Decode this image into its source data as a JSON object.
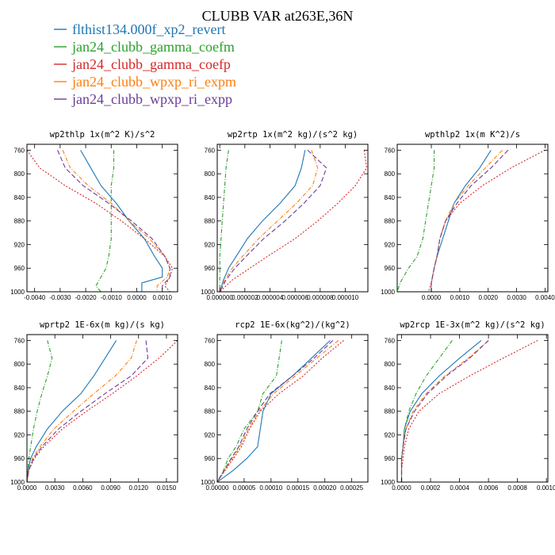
{
  "title": "CLUBB VAR at263E,36N",
  "legend": [
    {
      "name": "flthist134.000f_xp2_revert",
      "color": "#1f77b4",
      "dash": ""
    },
    {
      "name": "jan24_clubb_gamma_coefm",
      "color": "#2ca02c",
      "dash": "5,2,1,2"
    },
    {
      "name": "jan24_clubb_gamma_coefp",
      "color": "#d62728",
      "dash": "2,2"
    },
    {
      "name": "jan24_clubb_wpxp_ri_expm",
      "color": "#ff7f0e",
      "dash": "5,2,1,2"
    },
    {
      "name": "jan24_clubb_wpxp_ri_expp",
      "color": "#6a3d9a",
      "dash": "6,3"
    }
  ],
  "chart_data": [
    {
      "type": "line",
      "title": "wp2thlp  1x(m^2 K)/s^2",
      "xlim": [
        -0.0043,
        0.0016
      ],
      "ylim": [
        1000,
        750
      ],
      "xticks": [
        -0.004,
        -0.003,
        -0.002,
        -0.001,
        0.0,
        0.001
      ],
      "xtick_labels": [
        "-0.0040",
        "-0.0030",
        "-0.0020",
        "-0.0010",
        "0.0000",
        "0.0010"
      ],
      "yticks": [
        760,
        800,
        840,
        880,
        920,
        960,
        1000
      ],
      "series": [
        {
          "x": [
            -0.0022,
            -0.0018,
            -0.0014,
            -0.0008,
            -0.0003,
            0.0003,
            0.0007,
            0.001,
            0.001,
            0.0002,
            0.0002
          ],
          "y": [
            760,
            790,
            820,
            850,
            880,
            910,
            940,
            960,
            975,
            985,
            1000
          ]
        },
        {
          "x": [
            -0.0009,
            -0.0009,
            -0.001,
            -0.001,
            -0.001,
            -0.001,
            -0.0011,
            -0.0012,
            -0.0014,
            -0.0016,
            -0.0014
          ],
          "y": [
            760,
            790,
            820,
            850,
            880,
            910,
            940,
            960,
            975,
            990,
            1000
          ]
        },
        {
          "x": [
            -0.0043,
            -0.0038,
            -0.0028,
            -0.0016,
            -0.0006,
            0.0003,
            0.0011,
            0.0014,
            0.0013,
            0.0011,
            0.0013
          ],
          "y": [
            760,
            790,
            820,
            850,
            880,
            910,
            940,
            960,
            975,
            990,
            1000
          ]
        },
        {
          "x": [
            -0.0029,
            -0.0026,
            -0.0019,
            -0.001,
            -0.0003,
            0.0005,
            0.0011,
            0.0013,
            0.0012,
            0.0008,
            0.0008
          ],
          "y": [
            760,
            790,
            820,
            850,
            880,
            910,
            940,
            960,
            975,
            990,
            1000
          ]
        },
        {
          "x": [
            -0.0031,
            -0.0028,
            -0.0021,
            -0.0011,
            -0.0002,
            0.0006,
            0.0011,
            0.0013,
            0.0013,
            0.001,
            0.001
          ],
          "y": [
            760,
            790,
            820,
            850,
            880,
            910,
            940,
            960,
            975,
            990,
            1000
          ]
        }
      ]
    },
    {
      "type": "line",
      "title": "wp2rtp  1x(m^2 kg)/(s^2 kg)",
      "xlim": [
        -2e-07,
        1.18e-05
      ],
      "ylim": [
        1000,
        750
      ],
      "xticks": [
        0.0,
        2e-06,
        4e-06,
        6e-06,
        8e-06,
        1e-05
      ],
      "xtick_labels": [
        "0.000000",
        "0.000002",
        "0.000004",
        "0.000006",
        "0.000008",
        "0.000010"
      ],
      "yticks": [
        760,
        800,
        840,
        880,
        920,
        960,
        1000
      ],
      "series": [
        {
          "x": [
            6.8e-06,
            6.5e-06,
            6e-06,
            4.8e-06,
            3.4e-06,
            2.2e-06,
            1.3e-06,
            7e-07,
            3e-07,
            0.0
          ],
          "y": [
            760,
            790,
            820,
            850,
            880,
            910,
            940,
            960,
            980,
            1000
          ]
        },
        {
          "x": [
            7e-07,
            5e-07,
            4e-07,
            3e-07,
            2e-07,
            1e-07,
            0.0,
            0.0,
            0.0,
            0.0
          ],
          "y": [
            760,
            790,
            820,
            850,
            880,
            910,
            940,
            960,
            980,
            1000
          ]
        },
        {
          "x": [
            1.15e-05,
            1.17e-05,
            1.08e-05,
            9.4e-06,
            7.8e-06,
            6e-06,
            3.8e-06,
            2.4e-06,
            1e-06,
            0.0
          ],
          "y": [
            760,
            790,
            820,
            850,
            880,
            910,
            940,
            960,
            980,
            1000
          ]
        },
        {
          "x": [
            7.3e-06,
            7.8e-06,
            7.4e-06,
            6.1e-06,
            4.6e-06,
            3.1e-06,
            1.8e-06,
            1e-06,
            4e-07,
            0.0
          ],
          "y": [
            760,
            790,
            820,
            850,
            880,
            910,
            940,
            960,
            980,
            1000
          ]
        },
        {
          "x": [
            7e-06,
            8.5e-06,
            8e-06,
            6.7e-06,
            5.2e-06,
            3.5e-06,
            2.1e-06,
            1.2e-06,
            5e-07,
            0.0
          ],
          "y": [
            760,
            790,
            820,
            850,
            880,
            910,
            940,
            960,
            980,
            1000
          ]
        }
      ]
    },
    {
      "type": "line",
      "title": "wpthlp2  1x(m K^2)/s",
      "xlim": [
        -0.0012,
        0.0041
      ],
      "ylim": [
        1000,
        750
      ],
      "xticks": [
        0.0,
        0.001,
        0.002,
        0.003,
        0.004
      ],
      "xtick_labels": [
        "0.0000",
        "0.0010",
        "0.0020",
        "0.0030",
        "0.0040"
      ],
      "yticks": [
        760,
        800,
        840,
        880,
        920,
        960,
        1000
      ],
      "series": [
        {
          "x": [
            0.0021,
            0.0017,
            0.0012,
            0.0008,
            0.0006,
            0.0004,
            0.0002,
            0.0001,
            0.0,
            0.0
          ],
          "y": [
            760,
            790,
            820,
            850,
            880,
            910,
            940,
            960,
            985,
            1000
          ]
        },
        {
          "x": [
            0.0001,
            0.0001,
            0.0,
            -0.0001,
            -0.0002,
            -0.0003,
            -0.0005,
            -0.0008,
            -0.0011,
            -0.0012
          ],
          "y": [
            760,
            790,
            820,
            850,
            880,
            910,
            940,
            960,
            985,
            1000
          ]
        },
        {
          "x": [
            0.004,
            0.0028,
            0.0018,
            0.001,
            0.0005,
            0.0003,
            0.0002,
            0.0001,
            0.0,
            -0.0001
          ],
          "y": [
            760,
            790,
            820,
            850,
            880,
            910,
            940,
            960,
            985,
            1000
          ]
        },
        {
          "x": [
            0.0025,
            0.0019,
            0.0013,
            0.0008,
            0.0005,
            0.0003,
            0.0002,
            0.0001,
            0.0,
            0.0
          ],
          "y": [
            760,
            790,
            820,
            850,
            880,
            910,
            940,
            960,
            985,
            1000
          ]
        },
        {
          "x": [
            0.0027,
            0.0021,
            0.0014,
            0.0009,
            0.0005,
            0.0003,
            0.0002,
            0.0001,
            0.0,
            0.0
          ],
          "y": [
            760,
            790,
            820,
            850,
            880,
            910,
            940,
            960,
            985,
            1000
          ]
        }
      ]
    },
    {
      "type": "line",
      "title": "wprtp2  1E-6x(m kg)/(s kg)",
      "xlim": [
        0.0,
        0.0162
      ],
      "ylim": [
        1000,
        750
      ],
      "xticks": [
        0.0,
        0.003,
        0.006,
        0.009,
        0.012,
        0.015
      ],
      "xtick_labels": [
        "0.0000",
        "0.0030",
        "0.0060",
        "0.0090",
        "0.0120",
        "0.0150"
      ],
      "yticks": [
        760,
        800,
        840,
        880,
        920,
        960,
        1000
      ],
      "series": [
        {
          "x": [
            0.0096,
            0.0084,
            0.0072,
            0.0058,
            0.0038,
            0.0022,
            0.001,
            0.0004,
            0.0001,
            0.0
          ],
          "y": [
            760,
            790,
            820,
            850,
            880,
            910,
            940,
            960,
            980,
            1000
          ]
        },
        {
          "x": [
            0.0022,
            0.0027,
            0.0022,
            0.0016,
            0.0011,
            0.0007,
            0.0004,
            0.0002,
            0.0001,
            0.0
          ],
          "y": [
            760,
            790,
            820,
            850,
            880,
            910,
            940,
            960,
            980,
            1000
          ]
        },
        {
          "x": [
            0.0162,
            0.0142,
            0.0118,
            0.0092,
            0.0064,
            0.0038,
            0.0018,
            0.0008,
            0.0002,
            0.0
          ],
          "y": [
            760,
            790,
            820,
            850,
            880,
            910,
            940,
            960,
            980,
            1000
          ]
        },
        {
          "x": [
            0.0118,
            0.0112,
            0.0095,
            0.0072,
            0.005,
            0.0029,
            0.0014,
            0.0006,
            0.0002,
            0.0
          ],
          "y": [
            760,
            790,
            820,
            850,
            880,
            910,
            940,
            960,
            980,
            1000
          ]
        },
        {
          "x": [
            0.0128,
            0.013,
            0.0112,
            0.0084,
            0.0058,
            0.0034,
            0.0016,
            0.0007,
            0.0002,
            0.0
          ],
          "y": [
            760,
            790,
            820,
            850,
            880,
            910,
            940,
            960,
            980,
            1000
          ]
        }
      ]
    },
    {
      "type": "line",
      "title": "rcp2  1E-6x(kg^2)/(kg^2)",
      "xlim": [
        0.0,
        0.00028
      ],
      "ylim": [
        1000,
        750
      ],
      "xticks": [
        0.0,
        5e-05,
        0.0001,
        0.00015,
        0.0002,
        0.00025
      ],
      "xtick_labels": [
        "0.00000",
        "0.00005",
        "0.00010",
        "0.00015",
        "0.00020",
        "0.00025"
      ],
      "yticks": [
        760,
        800,
        840,
        880,
        920,
        960,
        1000
      ],
      "series": [
        {
          "x": [
            0.00021,
            0.000175,
            0.00014,
            0.0001,
            8.5e-05,
            8e-05,
            7.5e-05,
            5.5e-05,
            3e-05,
            0.0
          ],
          "y": [
            760,
            790,
            820,
            850,
            880,
            910,
            940,
            960,
            980,
            1000
          ]
        },
        {
          "x": [
            0.00012,
            0.000115,
            0.00011,
            8.5e-05,
            7.5e-05,
            5e-05,
            3.5e-05,
            2e-05,
            1.2e-05,
            0.0
          ],
          "y": [
            760,
            790,
            820,
            850,
            880,
            910,
            940,
            960,
            980,
            1000
          ]
        },
        {
          "x": [
            0.000235,
            0.000195,
            0.00016,
            0.000115,
            8e-05,
            6e-05,
            4.5e-05,
            3e-05,
            1.5e-05,
            0.0
          ],
          "y": [
            760,
            790,
            820,
            850,
            880,
            910,
            940,
            960,
            980,
            1000
          ]
        },
        {
          "x": [
            0.000225,
            0.000185,
            0.000145,
            0.000105,
            7.8e-05,
            5.8e-05,
            4.2e-05,
            2.8e-05,
            1.4e-05,
            0.0
          ],
          "y": [
            760,
            790,
            820,
            850,
            880,
            910,
            940,
            960,
            980,
            1000
          ]
        },
        {
          "x": [
            0.000215,
            0.00018,
            0.00014,
            9.8e-05,
            7.5e-05,
            5.5e-05,
            4e-05,
            2.6e-05,
            1.3e-05,
            0.0
          ],
          "y": [
            760,
            790,
            820,
            850,
            880,
            910,
            940,
            960,
            980,
            1000
          ]
        }
      ]
    },
    {
      "type": "line",
      "title": "wp2rcp  1E-3x(m^2 kg)/(s^2 kg)",
      "xlim": [
        -3e-05,
        0.00101
      ],
      "ylim": [
        1000,
        750
      ],
      "xticks": [
        0.0,
        0.0002,
        0.0004,
        0.0006,
        0.0008,
        0.001
      ],
      "xtick_labels": [
        "0.0000",
        "0.0002",
        "0.0004",
        "0.0006",
        "0.0008",
        "0.0010"
      ],
      "yticks": [
        760,
        800,
        840,
        880,
        920,
        960,
        1000
      ],
      "series": [
        {
          "x": [
            0.00055,
            0.0004,
            0.00026,
            0.00014,
            6e-05,
            2e-05,
            1e-05,
            0.0,
            0.0,
            0.0
          ],
          "y": [
            760,
            790,
            820,
            850,
            880,
            910,
            940,
            960,
            980,
            1000
          ]
        },
        {
          "x": [
            0.00035,
            0.00026,
            0.00017,
            0.0001,
            5e-05,
            2e-05,
            1e-05,
            0.0,
            0.0,
            0.0
          ],
          "y": [
            760,
            790,
            820,
            850,
            880,
            910,
            940,
            960,
            980,
            1000
          ]
        },
        {
          "x": [
            0.00094,
            0.0007,
            0.00047,
            0.00026,
            0.00012,
            5e-05,
            2e-05,
            1e-05,
            0.0,
            0.0
          ],
          "y": [
            760,
            790,
            820,
            850,
            880,
            910,
            940,
            960,
            980,
            1000
          ]
        },
        {
          "x": [
            0.0006,
            0.00046,
            0.0003,
            0.00017,
            8e-05,
            3e-05,
            1e-05,
            0.0,
            0.0,
            0.0
          ],
          "y": [
            760,
            790,
            820,
            850,
            880,
            910,
            940,
            960,
            980,
            1000
          ]
        },
        {
          "x": [
            0.0006,
            0.00047,
            0.00031,
            0.00018,
            9e-05,
            3e-05,
            1e-05,
            0.0,
            0.0,
            0.0
          ],
          "y": [
            760,
            790,
            820,
            850,
            880,
            910,
            940,
            960,
            980,
            1000
          ]
        }
      ]
    }
  ]
}
